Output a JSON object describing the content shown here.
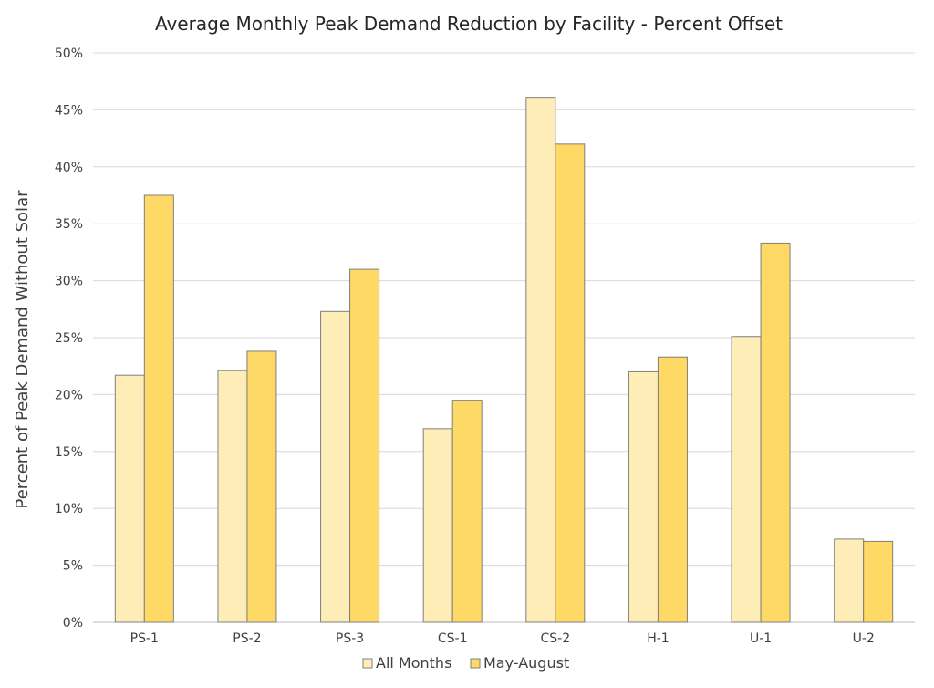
{
  "chart_data": {
    "type": "bar",
    "title": "Average Monthly Peak Demand Reduction by Facility - Percent Offset",
    "xlabel": "",
    "ylabel": "Percent of Peak Demand Without Solar",
    "categories": [
      "PS-1",
      "PS-2",
      "PS-3",
      "CS-1",
      "CS-2",
      "H-1",
      "U-1",
      "U-2"
    ],
    "series": [
      {
        "name": "All Months",
        "color": "#FFEDB8",
        "values": [
          21.7,
          22.1,
          27.3,
          17.0,
          46.1,
          22.0,
          25.1,
          7.3
        ]
      },
      {
        "name": "May-August",
        "color": "#FFD966",
        "values": [
          37.5,
          23.8,
          31.0,
          19.5,
          42.0,
          23.3,
          33.3,
          7.1
        ]
      }
    ],
    "ylim": [
      0,
      50
    ],
    "yticks": [
      0,
      5,
      10,
      15,
      20,
      25,
      30,
      35,
      40,
      45,
      50
    ],
    "ytick_format": "percent",
    "grid": true,
    "legend_position": "bottom",
    "bar_outline_color": "#7F7F7F",
    "grid_color": "#D9D9D9",
    "axis_color": "#BFBFBF",
    "text_color": "#404040"
  }
}
